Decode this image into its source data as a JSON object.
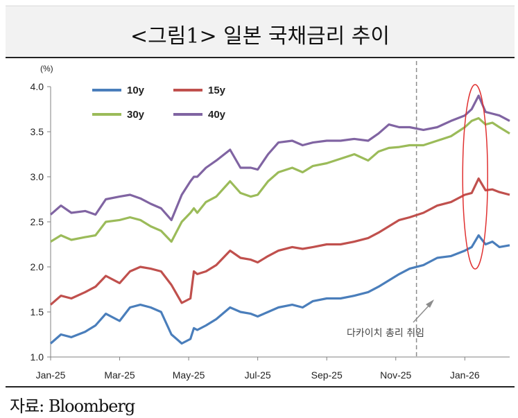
{
  "title": "<그림1> 일본 국채금리 추이",
  "source": "자료: Bloomberg",
  "chart_data": {
    "type": "line",
    "ylabel": "(%)",
    "ylim": [
      1.0,
      4.0
    ],
    "yticks": [
      "1.0",
      "1.5",
      "2.0",
      "2.5",
      "3.0",
      "3.5",
      "4.0"
    ],
    "xticks": [
      "Jan-25",
      "Mar-25",
      "May-25",
      "Jul-25",
      "Sep-25",
      "Nov-25",
      "Jan-26"
    ],
    "x_range_months": [
      0,
      13.3
    ],
    "grid": false,
    "legend": "top-left",
    "annotation": "다카이치 총리 취임",
    "annotation_month": 10.6,
    "highlight_month": 12.3,
    "series": [
      {
        "name": "10y",
        "color": "#4a7ebb",
        "x": [
          0,
          0.3,
          0.6,
          1.0,
          1.3,
          1.6,
          2.0,
          2.3,
          2.6,
          2.9,
          3.2,
          3.5,
          3.8,
          4.05,
          4.15,
          4.25,
          4.5,
          4.8,
          5.2,
          5.5,
          5.8,
          6.0,
          6.3,
          6.6,
          7.0,
          7.3,
          7.6,
          8.0,
          8.4,
          8.8,
          9.2,
          9.5,
          9.8,
          10.1,
          10.4,
          10.8,
          11.2,
          11.6,
          12.0,
          12.2,
          12.4,
          12.6,
          12.8,
          13.0,
          13.3
        ],
        "y": [
          1.15,
          1.25,
          1.22,
          1.28,
          1.35,
          1.48,
          1.4,
          1.55,
          1.58,
          1.55,
          1.5,
          1.25,
          1.15,
          1.2,
          1.32,
          1.3,
          1.35,
          1.42,
          1.55,
          1.5,
          1.48,
          1.45,
          1.5,
          1.55,
          1.58,
          1.55,
          1.62,
          1.65,
          1.65,
          1.68,
          1.72,
          1.78,
          1.85,
          1.92,
          1.98,
          2.02,
          2.1,
          2.12,
          2.18,
          2.22,
          2.35,
          2.25,
          2.28,
          2.22,
          2.24
        ]
      },
      {
        "name": "15y",
        "color": "#c0504d",
        "x": [
          0,
          0.3,
          0.6,
          1.0,
          1.3,
          1.6,
          2.0,
          2.3,
          2.6,
          2.9,
          3.2,
          3.5,
          3.8,
          4.05,
          4.15,
          4.25,
          4.5,
          4.8,
          5.2,
          5.5,
          5.8,
          6.0,
          6.3,
          6.6,
          7.0,
          7.3,
          7.6,
          8.0,
          8.4,
          8.8,
          9.2,
          9.5,
          9.8,
          10.1,
          10.4,
          10.8,
          11.2,
          11.6,
          12.0,
          12.2,
          12.4,
          12.6,
          12.8,
          13.0,
          13.3
        ],
        "y": [
          1.58,
          1.68,
          1.65,
          1.72,
          1.78,
          1.9,
          1.82,
          1.95,
          2.0,
          1.98,
          1.95,
          1.8,
          1.6,
          1.65,
          1.95,
          1.92,
          1.95,
          2.02,
          2.18,
          2.1,
          2.08,
          2.05,
          2.12,
          2.18,
          2.22,
          2.2,
          2.22,
          2.25,
          2.25,
          2.28,
          2.32,
          2.38,
          2.45,
          2.52,
          2.55,
          2.6,
          2.68,
          2.72,
          2.8,
          2.82,
          2.98,
          2.85,
          2.86,
          2.83,
          2.8
        ]
      },
      {
        "name": "30y",
        "color": "#9bbb59",
        "x": [
          0,
          0.3,
          0.6,
          1.0,
          1.3,
          1.6,
          2.0,
          2.3,
          2.6,
          2.9,
          3.2,
          3.5,
          3.8,
          4.05,
          4.15,
          4.25,
          4.5,
          4.8,
          5.2,
          5.5,
          5.8,
          6.0,
          6.3,
          6.6,
          7.0,
          7.3,
          7.6,
          8.0,
          8.4,
          8.8,
          9.2,
          9.5,
          9.8,
          10.1,
          10.4,
          10.8,
          11.2,
          11.6,
          12.0,
          12.2,
          12.4,
          12.6,
          12.8,
          13.0,
          13.3
        ],
        "y": [
          2.28,
          2.35,
          2.3,
          2.33,
          2.35,
          2.5,
          2.52,
          2.55,
          2.52,
          2.45,
          2.4,
          2.28,
          2.5,
          2.6,
          2.65,
          2.6,
          2.72,
          2.78,
          2.95,
          2.82,
          2.78,
          2.8,
          2.95,
          3.05,
          3.1,
          3.05,
          3.12,
          3.15,
          3.2,
          3.25,
          3.18,
          3.28,
          3.32,
          3.33,
          3.35,
          3.35,
          3.4,
          3.45,
          3.55,
          3.62,
          3.65,
          3.58,
          3.6,
          3.55,
          3.48
        ]
      },
      {
        "name": "40y",
        "color": "#8064a2",
        "x": [
          0,
          0.3,
          0.6,
          1.0,
          1.3,
          1.6,
          2.0,
          2.3,
          2.6,
          2.9,
          3.2,
          3.5,
          3.8,
          4.05,
          4.15,
          4.25,
          4.5,
          4.8,
          5.2,
          5.5,
          5.8,
          6.0,
          6.3,
          6.6,
          7.0,
          7.3,
          7.6,
          8.0,
          8.4,
          8.8,
          9.2,
          9.5,
          9.8,
          10.1,
          10.4,
          10.8,
          11.2,
          11.6,
          12.0,
          12.2,
          12.4,
          12.6,
          12.8,
          13.0,
          13.3
        ],
        "y": [
          2.58,
          2.68,
          2.6,
          2.62,
          2.58,
          2.75,
          2.78,
          2.8,
          2.76,
          2.7,
          2.65,
          2.52,
          2.8,
          2.95,
          3.0,
          3.0,
          3.1,
          3.18,
          3.3,
          3.1,
          3.1,
          3.08,
          3.25,
          3.38,
          3.4,
          3.35,
          3.38,
          3.4,
          3.4,
          3.42,
          3.4,
          3.48,
          3.58,
          3.55,
          3.55,
          3.52,
          3.55,
          3.62,
          3.68,
          3.75,
          3.9,
          3.72,
          3.7,
          3.68,
          3.62
        ]
      }
    ]
  }
}
